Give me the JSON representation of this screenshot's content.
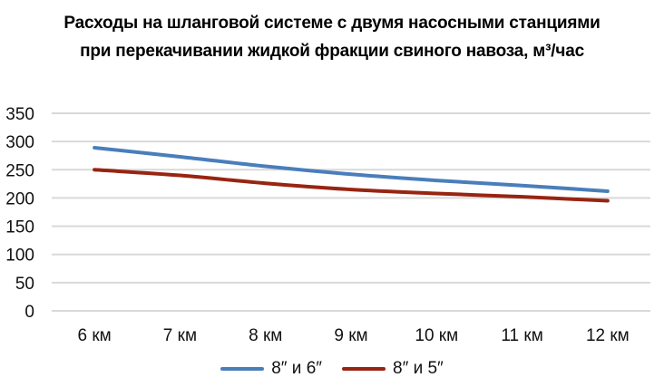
{
  "title": {
    "line1": "Расходы на шланговой системе с двумя насосными станциями",
    "line2": "при перекачивании жидкой фракции свиного навоза, м³/час"
  },
  "legend": [
    {
      "label": "8″ и 6″",
      "color": "#4A7EBB"
    },
    {
      "label": "8″ и 5″",
      "color": "#982412"
    }
  ],
  "chart_data": {
    "type": "line",
    "title": "Расходы на шланговой системе с двумя насосными станциями при перекачивании жидкой фракции свиного навоза, м³/час",
    "xlabel": "",
    "ylabel": "",
    "categories": [
      "6 км",
      "7 км",
      "8 км",
      "9 км",
      "10 км",
      "11 км",
      "12 км"
    ],
    "series": [
      {
        "name": "8″ и 6″",
        "color": "#4A7EBB",
        "values": [
          289,
          273,
          256,
          242,
          231,
          222,
          212
        ]
      },
      {
        "name": "8″ и 5″",
        "color": "#982412",
        "values": [
          250,
          240,
          226,
          215,
          208,
          202,
          195
        ]
      }
    ],
    "yticks": [
      0,
      50,
      100,
      150,
      200,
      250,
      300,
      350
    ],
    "ylim": [
      0,
      350
    ],
    "grid": true,
    "legend_position": "bottom",
    "smooth": true
  }
}
